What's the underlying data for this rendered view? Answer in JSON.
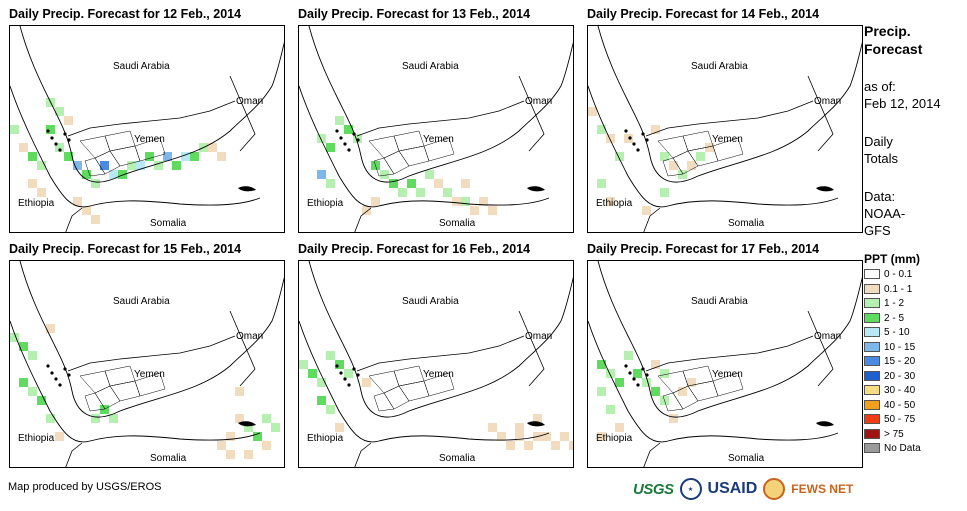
{
  "panels": [
    {
      "title": "Daily Precip. Forecast for 12 Feb., 2014"
    },
    {
      "title": "Daily Precip. Forecast for 13 Feb., 2014"
    },
    {
      "title": "Daily Precip. Forecast for 14 Feb., 2014"
    },
    {
      "title": "Daily Precip. Forecast for 15 Feb., 2014"
    },
    {
      "title": "Daily Precip. Forecast for 16 Feb., 2014"
    },
    {
      "title": "Daily Precip. Forecast for 17 Feb., 2014"
    }
  ],
  "map_labels": {
    "saudi": "Saudi Arabia",
    "oman": "Oman",
    "yemen": "Yemen",
    "ethiopia": "Ethiopia",
    "somalia": "Somalia"
  },
  "legend": {
    "title_line1": "Precip.",
    "title_line2": "Forecast",
    "asof_label": "as of:",
    "asof_date": "Feb 12, 2014",
    "daily_line1": "Daily",
    "daily_line2": "Totals",
    "data_label": "Data:",
    "data_line1": "NOAA-",
    "data_line2": "GFS",
    "ppt_title": "PPT (mm)",
    "classes": [
      {
        "label": "0 - 0.1",
        "color": "#ffffff"
      },
      {
        "label": "0.1 - 1",
        "color": "#f1dcbf"
      },
      {
        "label": "1 - 2",
        "color": "#b5f0b0"
      },
      {
        "label": "2 - 5",
        "color": "#5fdc5f"
      },
      {
        "label": "5 - 10",
        "color": "#b9e8f5"
      },
      {
        "label": "10 - 15",
        "color": "#7fb7ea"
      },
      {
        "label": "15 - 20",
        "color": "#4a8be0"
      },
      {
        "label": "20 - 30",
        "color": "#1f5fd0"
      },
      {
        "label": "30 - 40",
        "color": "#f5dc85"
      },
      {
        "label": "40 - 50",
        "color": "#f0a01e"
      },
      {
        "label": "50 - 75",
        "color": "#f03c14"
      },
      {
        "label": "> 75",
        "color": "#a01414"
      },
      {
        "label": "No Data",
        "color": "#9a9a9a"
      }
    ]
  },
  "footer": "Map produced by USGS/EROS",
  "logos": {
    "usgs": "USGS",
    "usaid": "USAID",
    "fews": "FEWS NET"
  }
}
